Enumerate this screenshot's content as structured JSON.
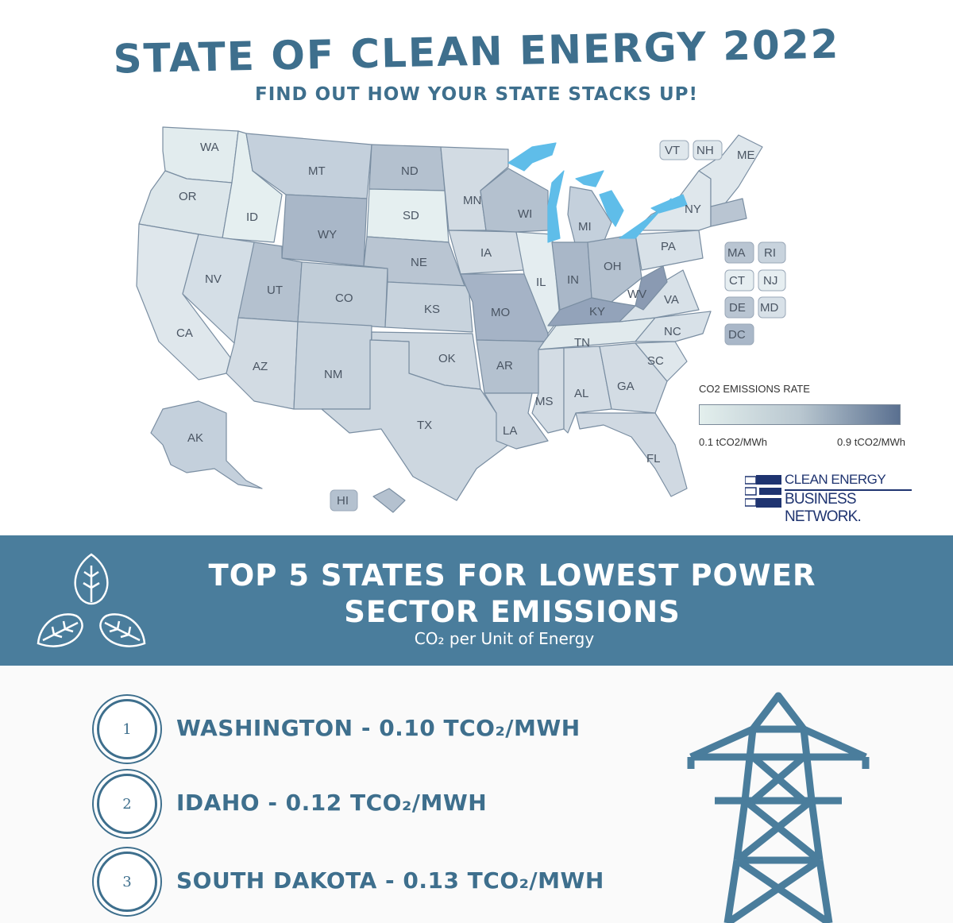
{
  "header": {
    "title": "STATE OF CLEAN ENERGY 2022",
    "subtitle": "FIND OUT HOW YOUR STATE STACKS UP!"
  },
  "map": {
    "state_labels": [
      "WA",
      "OR",
      "CA",
      "ID",
      "NV",
      "MT",
      "WY",
      "UT",
      "AZ",
      "CO",
      "NM",
      "ND",
      "SD",
      "NE",
      "KS",
      "OK",
      "TX",
      "MN",
      "IA",
      "MO",
      "AR",
      "LA",
      "WI",
      "IL",
      "MI",
      "IN",
      "KY",
      "TN",
      "MS",
      "AL",
      "OH",
      "WV",
      "GA",
      "SC",
      "NC",
      "VA",
      "PA",
      "NY",
      "ME",
      "FL",
      "AK",
      "HI"
    ],
    "small_state_labels": [
      "VT",
      "NH",
      "MA",
      "RI",
      "CT",
      "NJ",
      "DE",
      "MD",
      "DC"
    ],
    "colors": {
      "great_lakes": "#5fbde9",
      "border": "#7a8ea2"
    }
  },
  "legend": {
    "title": "CO2 EMISSIONS RATE",
    "min_label": "0.1 tCO2/MWh",
    "max_label": "0.9 tCO2/MWh",
    "colors": {
      "low": "#e3efed",
      "high": "#5a7090"
    }
  },
  "logo": {
    "line1": "CLEAN ENERGY",
    "line2": "BUSINESS NETWORK."
  },
  "banner": {
    "heading_line1": "TOP 5 STATES FOR LOWEST POWER",
    "heading_line2": "SECTOR EMISSIONS",
    "subheading": "CO₂ per Unit of Energy",
    "icon": "leaves-icon",
    "color": "#4a7d9c"
  },
  "rankings": [
    {
      "rank": "1",
      "text": "WASHINGTON - 0.10 TCO₂/MWH"
    },
    {
      "rank": "2",
      "text": "IDAHO - 0.12 TCO₂/MWH"
    },
    {
      "rank": "3",
      "text": "SOUTH DAKOTA - 0.13 TCO₂/MWH"
    }
  ],
  "decor": {
    "tower_icon": "power-tower-icon"
  }
}
